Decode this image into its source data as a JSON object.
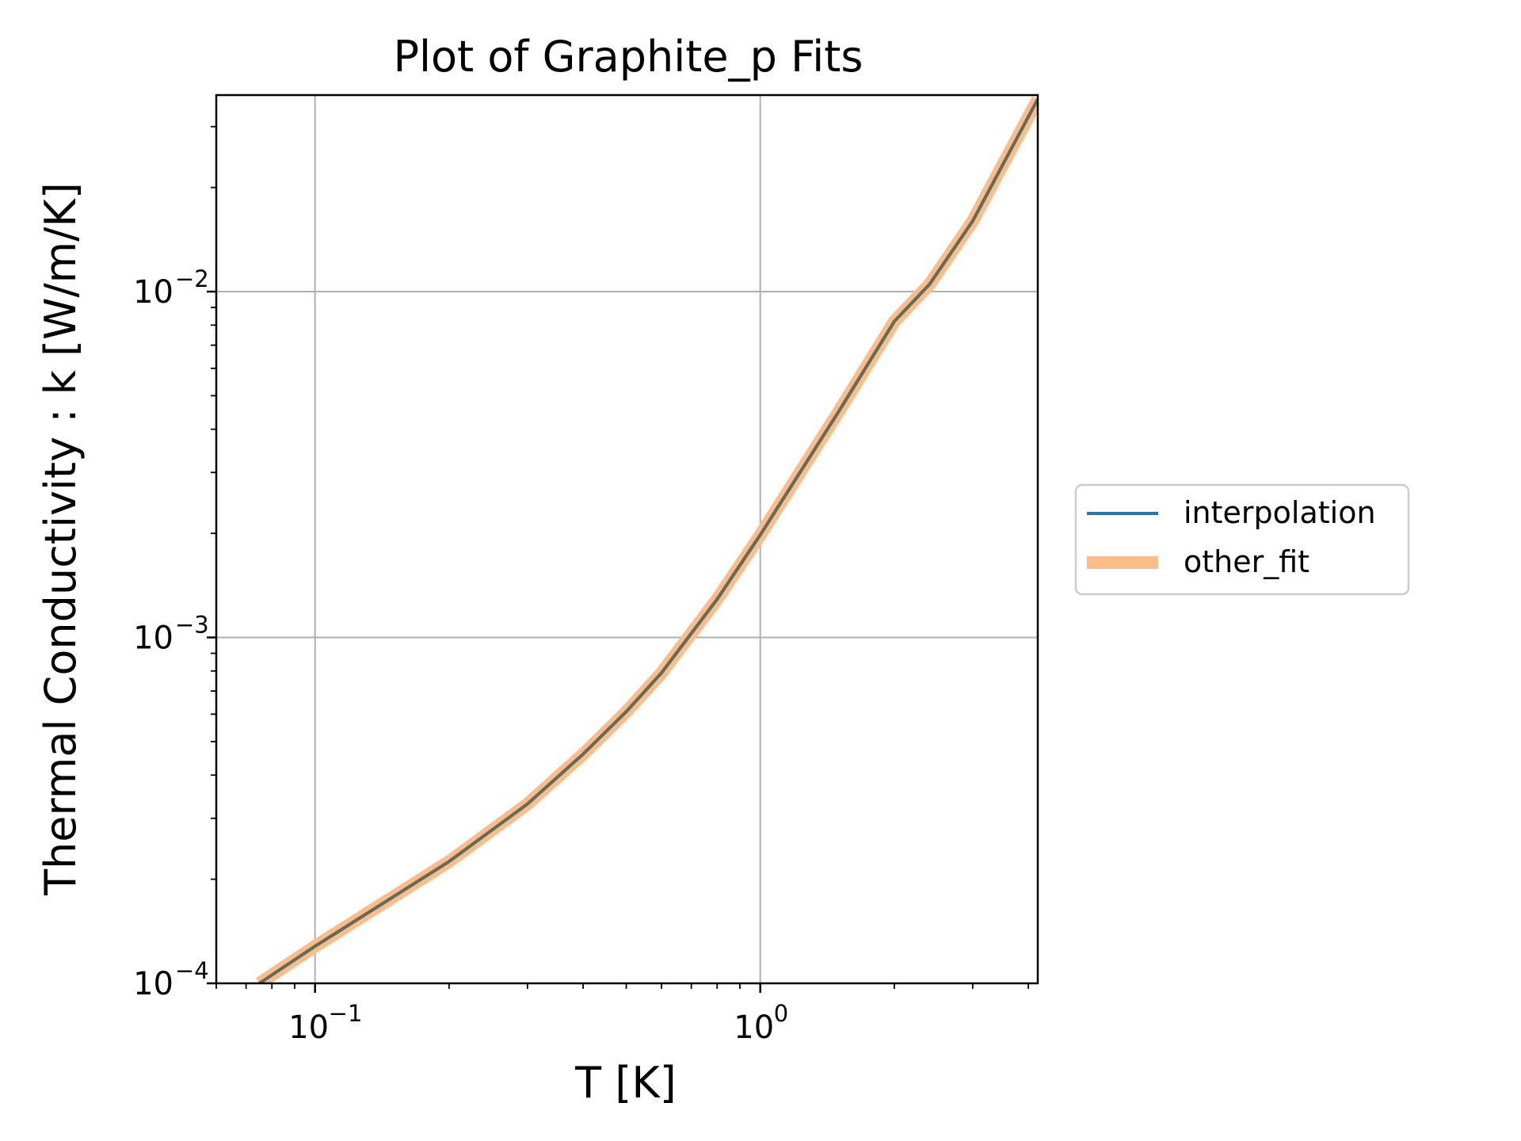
{
  "chart_data": {
    "type": "line",
    "title": "Plot of Graphite_p Fits",
    "xlabel": "T [K]",
    "ylabel": "Thermal Conductivity : k [W/m/K]",
    "x_scale": "log",
    "y_scale": "log",
    "xlim": [
      0.06,
      4.2
    ],
    "ylim": [
      0.0001,
      0.037
    ],
    "grid": true,
    "legend_position": "right",
    "x_ticks": [
      {
        "value": 0.1,
        "label": "10",
        "exp": "−1"
      },
      {
        "value": 1,
        "label": "10",
        "exp": "0"
      }
    ],
    "y_ticks": [
      {
        "value": 0.0001,
        "label": "10",
        "exp": "−4"
      },
      {
        "value": 0.001,
        "label": "10",
        "exp": "−3"
      },
      {
        "value": 0.01,
        "label": "10",
        "exp": "−2"
      }
    ],
    "series": [
      {
        "name": "interpolation",
        "color": "#1f77b4",
        "x": [
          0.075,
          0.1,
          0.15,
          0.2,
          0.3,
          0.4,
          0.5,
          0.6,
          0.8,
          1.0,
          1.5,
          2.0,
          2.4,
          3.0,
          4.2
        ],
        "y": [
          0.0001,
          0.000128,
          0.000178,
          0.000225,
          0.00033,
          0.00046,
          0.00061,
          0.00079,
          0.00129,
          0.00198,
          0.0045,
          0.0082,
          0.0105,
          0.016,
          0.036
        ]
      },
      {
        "name": "other_fit",
        "color": "#ffbb88",
        "x": [
          0.075,
          0.1,
          0.15,
          0.2,
          0.3,
          0.4,
          0.5,
          0.6,
          0.8,
          1.0,
          1.5,
          2.0,
          2.4,
          3.0,
          4.2
        ],
        "y": [
          0.0001,
          0.000128,
          0.000178,
          0.000225,
          0.00033,
          0.00046,
          0.00061,
          0.00079,
          0.00129,
          0.00198,
          0.0045,
          0.0082,
          0.0105,
          0.016,
          0.036
        ]
      }
    ]
  }
}
